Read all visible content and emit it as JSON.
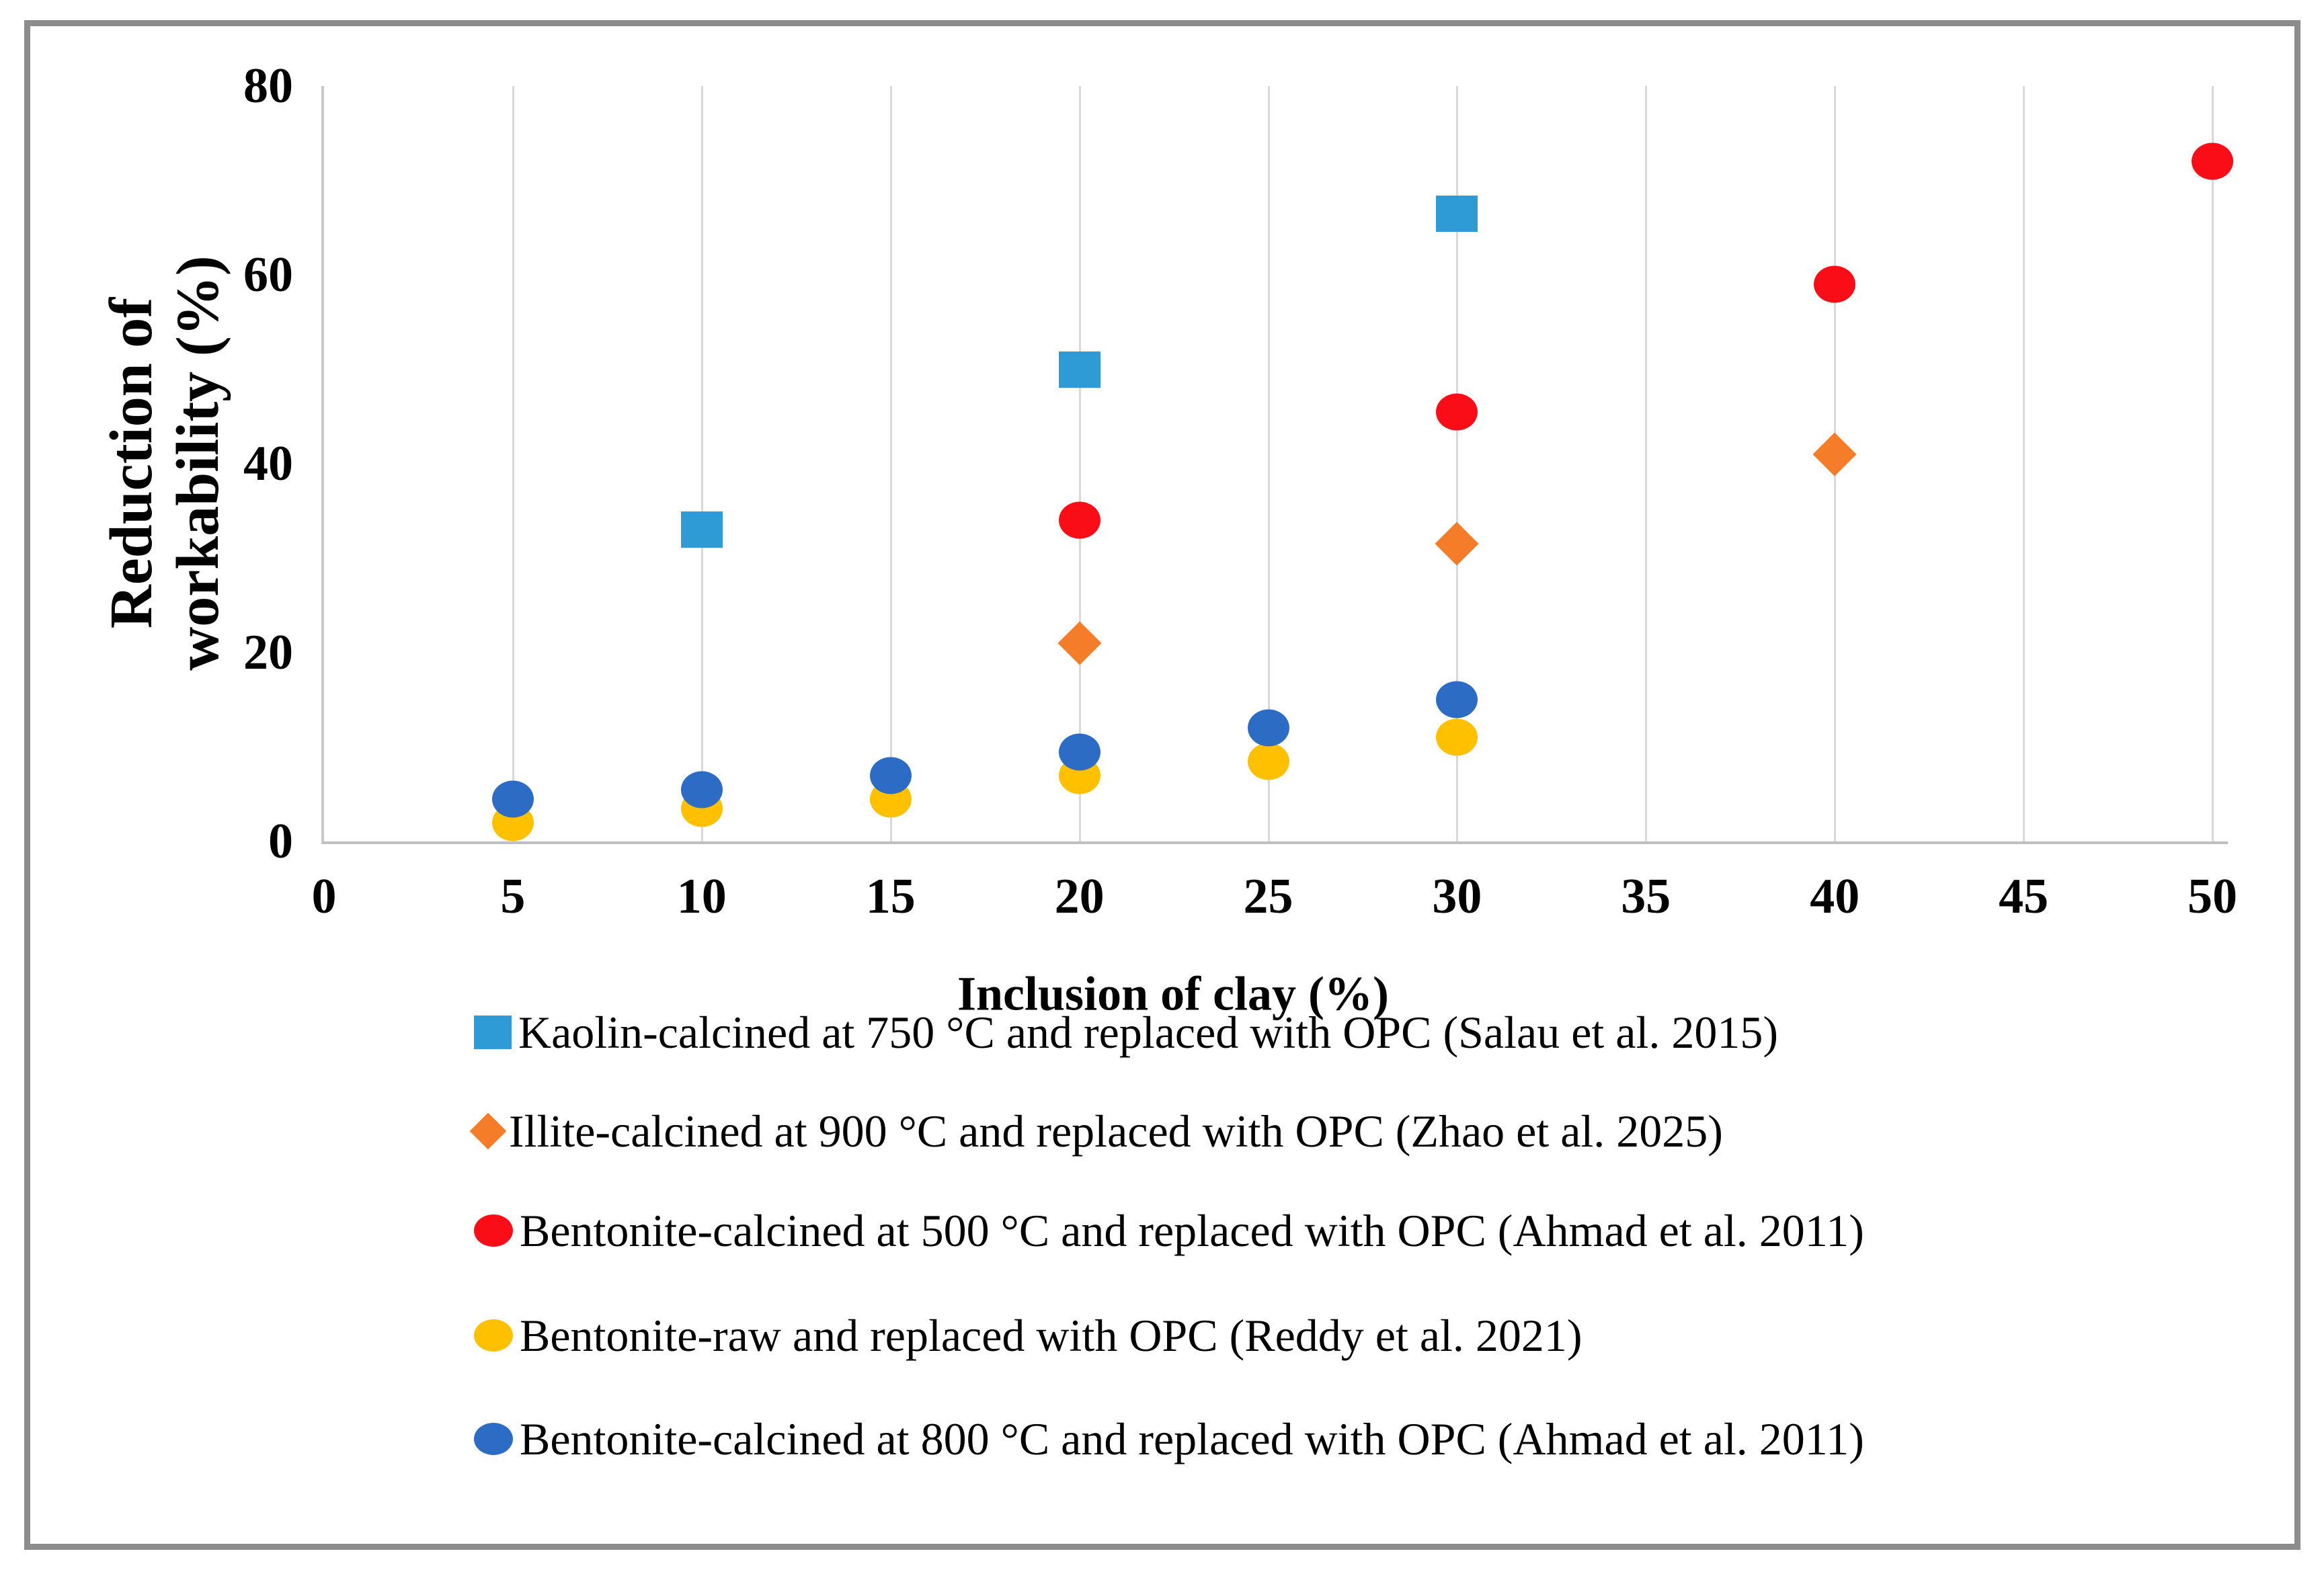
{
  "figure": {
    "border_color": "#8c8c8c",
    "background": "#ffffff",
    "text_color": "#000000",
    "gridline_color": "#d9d9d9",
    "y_axis_line_color": "#c9c9c9",
    "x_axis_line_color": "#bfbfbf"
  },
  "chart_data": {
    "type": "scatter",
    "title": "",
    "xlabel": "Inclusion of clay (%)",
    "ylabel": "Reduction of workability (%)",
    "ylabel_lines": [
      "Reduction of",
      "workability (%)"
    ],
    "xlim": [
      0,
      50
    ],
    "ylim": [
      0,
      80
    ],
    "xticks": [
      0,
      5,
      10,
      15,
      20,
      25,
      30,
      35,
      40,
      45,
      50
    ],
    "yticks": [
      0,
      20,
      40,
      60,
      80
    ],
    "grid": "vertical-only",
    "legend_position": "bottom-left",
    "series": [
      {
        "name": "Kaolin-calcined at 750 °C and replaced with OPC (Salau et al. 2015)",
        "marker": "square",
        "color": "#2e9bd6",
        "points": [
          [
            10,
            33
          ],
          [
            20,
            50
          ],
          [
            30,
            66.5
          ]
        ]
      },
      {
        "name": "Illite-calcined at 900 °C and replaced with OPC (Zhao et al. 2025)",
        "marker": "diamond",
        "color": "#f57d2a",
        "points": [
          [
            20,
            21
          ],
          [
            30,
            31.5
          ],
          [
            40,
            41
          ]
        ]
      },
      {
        "name": "Bentonite-calcined at 500 °C and replaced with OPC (Ahmad et al. 2011)",
        "marker": "circle",
        "color": "#fb0d18",
        "points": [
          [
            20,
            34
          ],
          [
            30,
            45.5
          ],
          [
            40,
            59
          ],
          [
            50,
            72
          ]
        ]
      },
      {
        "name": "Bentonite-raw and replaced with OPC (Reddy et al. 2021)",
        "marker": "circle",
        "color": "#ffc000",
        "points": [
          [
            5,
            2
          ],
          [
            10,
            3.5
          ],
          [
            15,
            4.5
          ],
          [
            20,
            7
          ],
          [
            25,
            8.5
          ],
          [
            30,
            11
          ]
        ]
      },
      {
        "name": "Bentonite-calcined at 800 °C and replaced with OPC (Ahmad et al. 2011)",
        "marker": "circle",
        "color": "#2d6cc4",
        "points": [
          [
            5,
            4.5
          ],
          [
            10,
            5.5
          ],
          [
            15,
            7
          ],
          [
            20,
            9.5
          ],
          [
            25,
            12
          ],
          [
            30,
            15
          ]
        ]
      }
    ]
  }
}
